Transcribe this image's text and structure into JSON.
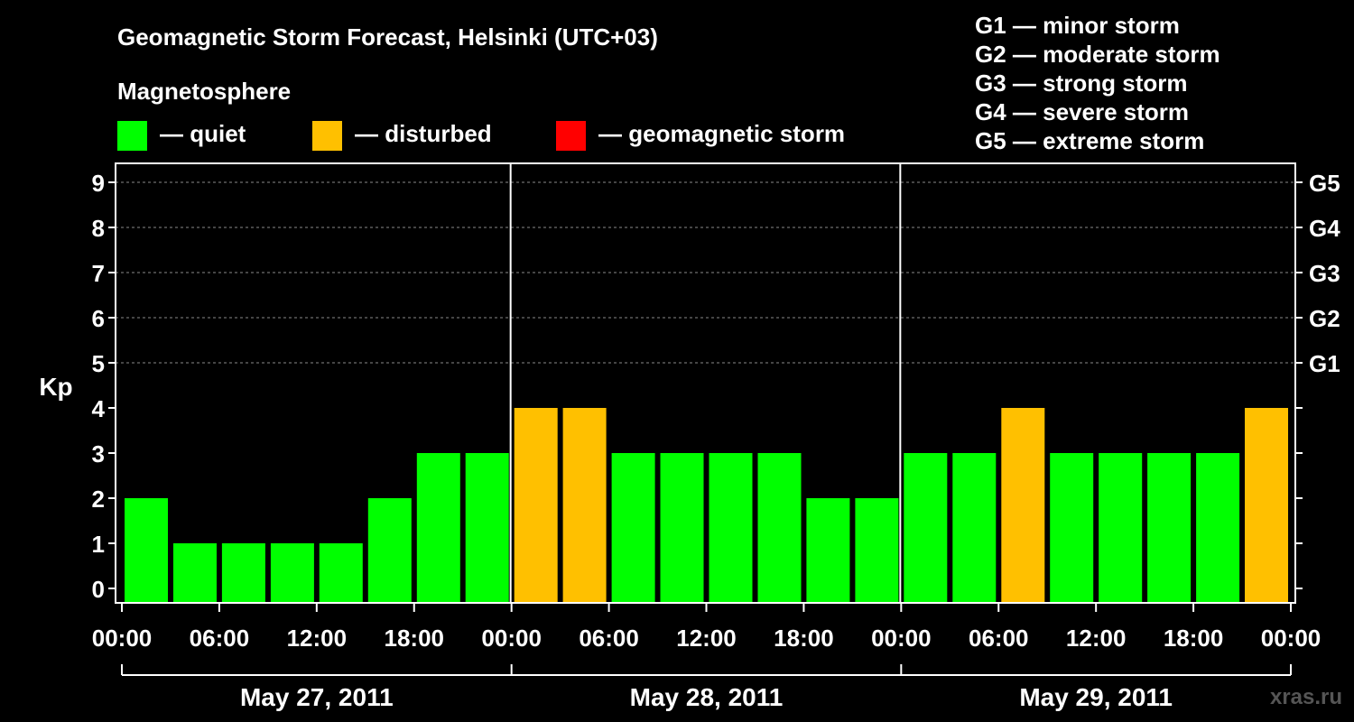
{
  "chart_data": {
    "type": "bar",
    "title": "Geomagnetic Storm Forecast, Helsinki (UTC+03)",
    "ylabel": "Kp",
    "ylim": [
      0,
      9
    ],
    "yticks": [
      "0",
      "1",
      "2",
      "3",
      "4",
      "5",
      "6",
      "7",
      "8",
      "9"
    ],
    "right_ticks": [
      {
        "kp": 5,
        "label": "G1"
      },
      {
        "kp": 6,
        "label": "G2"
      },
      {
        "kp": 7,
        "label": "G3"
      },
      {
        "kp": 8,
        "label": "G4"
      },
      {
        "kp": 9,
        "label": "G5"
      }
    ],
    "x_tick_labels": [
      "00:00",
      "06:00",
      "12:00",
      "18:00",
      "00:00",
      "06:00",
      "12:00",
      "18:00",
      "00:00",
      "06:00",
      "12:00",
      "18:00",
      "00:00"
    ],
    "days": [
      "May 27, 2011",
      "May 28, 2011",
      "May 29, 2011"
    ],
    "values": [
      2,
      1,
      1,
      1,
      1,
      2,
      3,
      3,
      4,
      4,
      3,
      3,
      3,
      3,
      2,
      2,
      3,
      3,
      4,
      3,
      3,
      3,
      3,
      4
    ],
    "status": [
      "quiet",
      "quiet",
      "quiet",
      "quiet",
      "quiet",
      "quiet",
      "quiet",
      "quiet",
      "disturbed",
      "disturbed",
      "quiet",
      "quiet",
      "quiet",
      "quiet",
      "quiet",
      "quiet",
      "quiet",
      "quiet",
      "disturbed",
      "quiet",
      "quiet",
      "quiet",
      "quiet",
      "disturbed"
    ],
    "grid": true,
    "legend_title": "Magnetosphere",
    "legend": [
      {
        "key": "quiet",
        "label": "— quiet",
        "color": "#00ff00"
      },
      {
        "key": "disturbed",
        "label": "— disturbed",
        "color": "#ffc000"
      },
      {
        "key": "storm",
        "label": "— geomagnetic storm",
        "color": "#ff0000"
      }
    ],
    "scale_legend": [
      "G1 — minor storm",
      "G2 — moderate storm",
      "G3 — strong storm",
      "G4 — severe storm",
      "G5 — extreme storm"
    ],
    "watermark": "xras.ru"
  }
}
